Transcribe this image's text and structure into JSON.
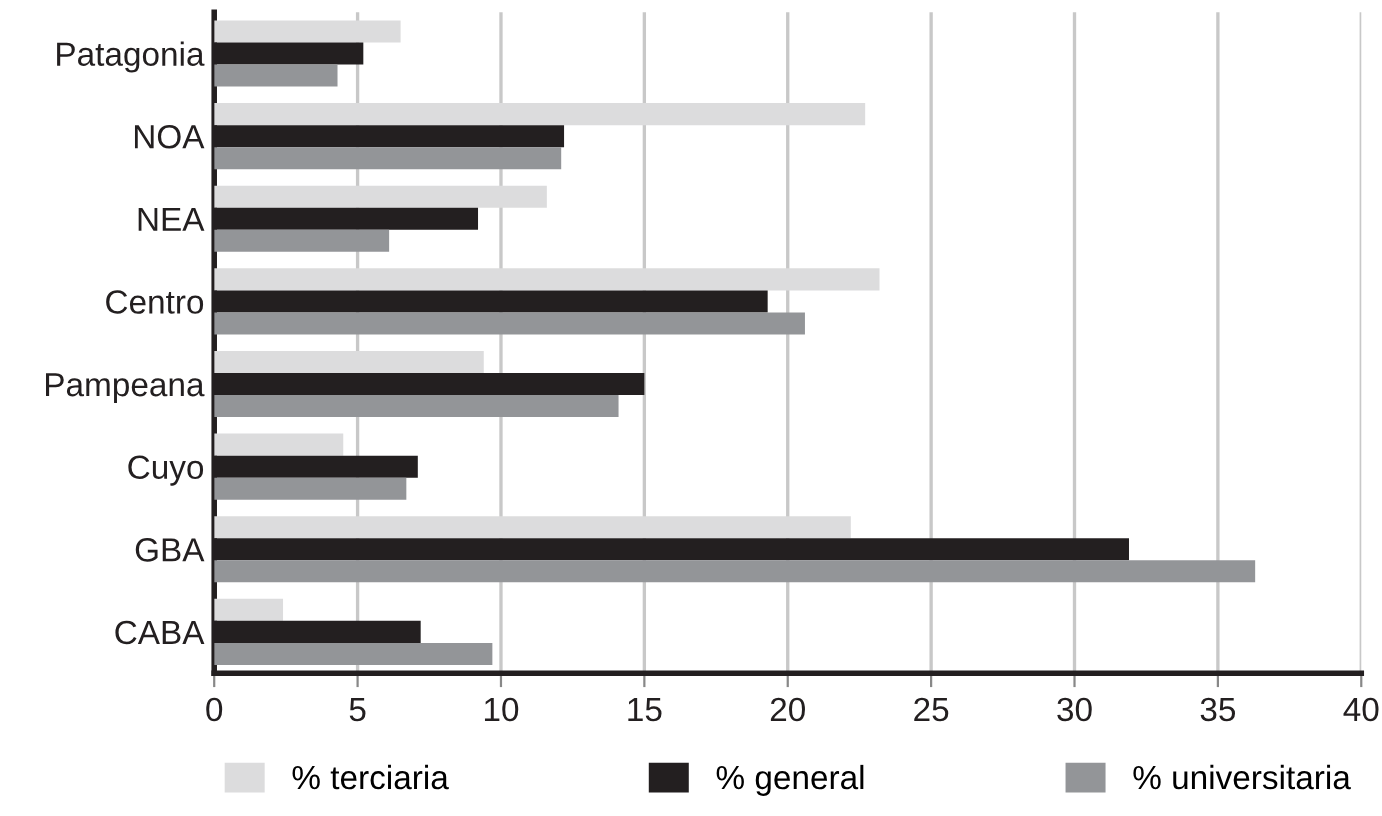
{
  "chart_data": {
    "type": "bar",
    "orientation": "horizontal",
    "categories": [
      "Patagonia",
      "NOA",
      "NEA",
      "Centro",
      "Pampeana",
      "Cuyo",
      "GBA",
      "CABA"
    ],
    "series": [
      {
        "name": "% terciaria",
        "color": "#dcdcdd",
        "values": [
          6.5,
          22.7,
          11.6,
          23.2,
          9.4,
          4.5,
          22.2,
          2.4
        ]
      },
      {
        "name": "% general",
        "color": "#231f20",
        "values": [
          5.2,
          12.2,
          9.2,
          19.3,
          15.0,
          7.1,
          31.9,
          7.2
        ]
      },
      {
        "name": "% universitaria",
        "color": "#939598",
        "values": [
          4.3,
          12.1,
          6.1,
          20.6,
          14.1,
          6.7,
          36.3,
          9.7
        ]
      }
    ],
    "xlim": [
      0,
      40
    ],
    "xticks": [
      0,
      5,
      10,
      15,
      20,
      25,
      30,
      35,
      40
    ],
    "grid": "x",
    "legend": "bottom"
  }
}
